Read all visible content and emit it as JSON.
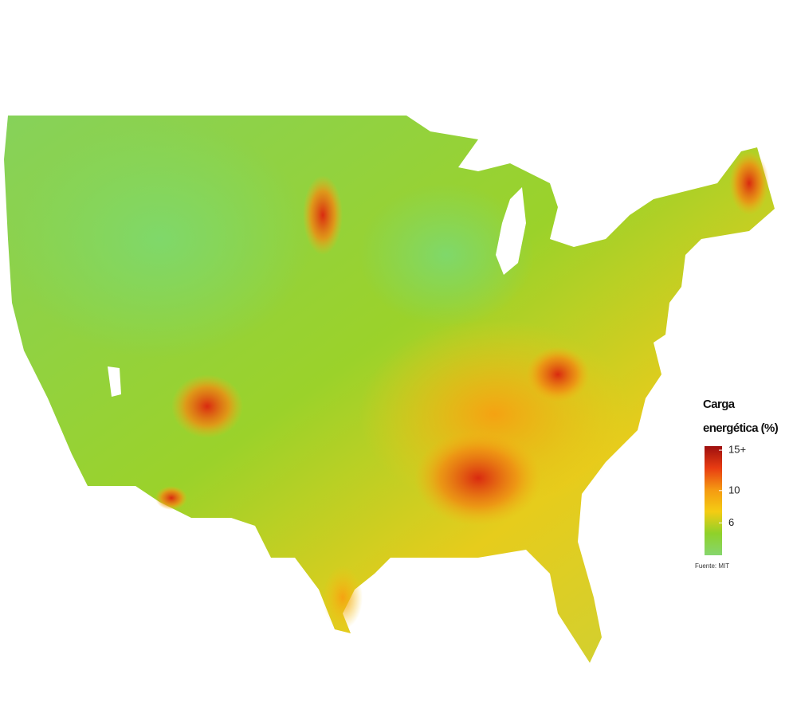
{
  "legend": {
    "title_lines": [
      "Carga",
      "energética (%)"
    ],
    "ticks": [
      {
        "value": 15,
        "label": "15+"
      },
      10,
      6
    ],
    "lim": [
      2,
      15.5
    ],
    "colors": [
      "#86d66e",
      "#8fd12a",
      "#f4cc13",
      "#f59a12",
      "#e83c12",
      "#9e0f0f"
    ]
  },
  "source": "Fuente: MIT"
}
